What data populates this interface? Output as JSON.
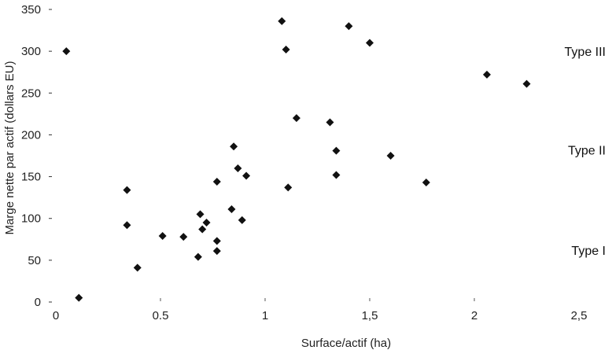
{
  "chart_data": {
    "type": "scatter",
    "xlabel": "Surface/actif (ha)",
    "ylabel": "Marge nette par actif (dollars EU)",
    "xlim": [
      0,
      2.5
    ],
    "ylim": [
      0,
      350
    ],
    "xticks": [
      {
        "value": 0,
        "label": "0"
      },
      {
        "value": 0.5,
        "label": "0.5"
      },
      {
        "value": 1,
        "label": "1"
      },
      {
        "value": 1.5,
        "label": "1,5"
      },
      {
        "value": 2,
        "label": "2"
      },
      {
        "value": 2.5,
        "label": "2,5"
      }
    ],
    "yticks": [
      {
        "value": 0,
        "label": "0"
      },
      {
        "value": 50,
        "label": "50"
      },
      {
        "value": 100,
        "label": "100"
      },
      {
        "value": 150,
        "label": "150"
      },
      {
        "value": 200,
        "label": "200"
      },
      {
        "value": 250,
        "label": "250"
      },
      {
        "value": 300,
        "label": "300"
      },
      {
        "value": 350,
        "label": "350"
      }
    ],
    "grid": false,
    "annotations": [
      {
        "text": "Type III",
        "x": 2.25,
        "y": 300
      },
      {
        "text": "Type II",
        "x": 2.25,
        "y": 182
      },
      {
        "text": "Type I",
        "x": 2.25,
        "y": 62
      }
    ],
    "points": [
      {
        "x": 0.05,
        "y": 300
      },
      {
        "x": 0.11,
        "y": 5
      },
      {
        "x": 0.34,
        "y": 134
      },
      {
        "x": 0.34,
        "y": 92
      },
      {
        "x": 0.39,
        "y": 41
      },
      {
        "x": 0.51,
        "y": 79
      },
      {
        "x": 0.61,
        "y": 78
      },
      {
        "x": 0.68,
        "y": 54
      },
      {
        "x": 0.69,
        "y": 105
      },
      {
        "x": 0.7,
        "y": 87
      },
      {
        "x": 0.72,
        "y": 95
      },
      {
        "x": 0.77,
        "y": 144
      },
      {
        "x": 0.77,
        "y": 73
      },
      {
        "x": 0.77,
        "y": 61
      },
      {
        "x": 0.84,
        "y": 111
      },
      {
        "x": 0.85,
        "y": 186
      },
      {
        "x": 0.87,
        "y": 160
      },
      {
        "x": 0.89,
        "y": 98
      },
      {
        "x": 0.91,
        "y": 151
      },
      {
        "x": 1.08,
        "y": 336
      },
      {
        "x": 1.1,
        "y": 302
      },
      {
        "x": 1.11,
        "y": 137
      },
      {
        "x": 1.15,
        "y": 220
      },
      {
        "x": 1.31,
        "y": 215
      },
      {
        "x": 1.34,
        "y": 181
      },
      {
        "x": 1.34,
        "y": 152
      },
      {
        "x": 1.4,
        "y": 330
      },
      {
        "x": 1.5,
        "y": 310
      },
      {
        "x": 1.6,
        "y": 175
      },
      {
        "x": 1.77,
        "y": 143
      },
      {
        "x": 2.06,
        "y": 272
      },
      {
        "x": 2.25,
        "y": 261
      }
    ]
  }
}
